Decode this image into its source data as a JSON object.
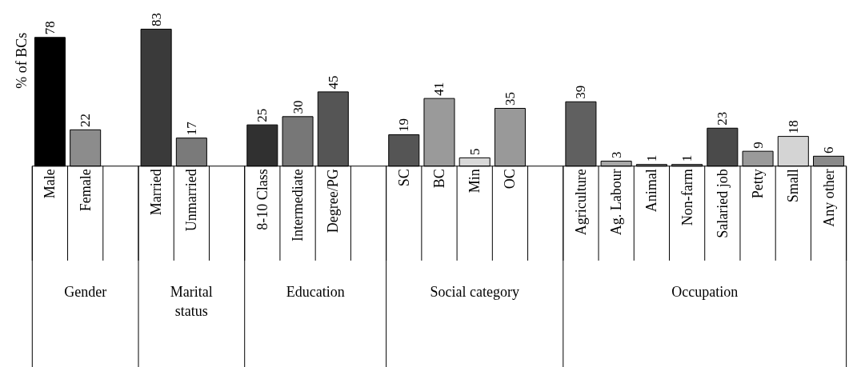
{
  "chart_data": {
    "type": "bar",
    "ylabel": "% of BCs",
    "data_labels": true,
    "categories": [
      "Male",
      "Female",
      null,
      "Married",
      "Unmarried",
      null,
      "8-10 Class",
      "Intermediate",
      "Degree/PG",
      null,
      "SC",
      "BC",
      "Min",
      "OC",
      null,
      "Agriculture",
      "Ag. Labour",
      "Animal",
      "Non-farm",
      "Salaried job",
      "Petty",
      "Small",
      "Any other"
    ],
    "values": [
      78,
      22,
      null,
      83,
      17,
      null,
      25,
      30,
      45,
      null,
      19,
      41,
      5,
      35,
      null,
      39,
      3,
      1,
      1,
      23,
      9,
      18,
      6
    ],
    "colors": [
      "#000000",
      "#8c8c8c",
      null,
      "#3a3a3a",
      "#7a7a7a",
      null,
      "#303030",
      "#777777",
      "#555555",
      null,
      "#555555",
      "#9a9a9a",
      "#d8d8d8",
      "#999999",
      null,
      "#606060",
      "#a8a8a8",
      "#808080",
      "#808080",
      "#4a4a4a",
      "#9a9a9a",
      "#d4d4d4",
      "#8a8a8a"
    ],
    "annotations": [
      "Gender",
      "Marital status",
      "Education",
      "Social category",
      "Occupation"
    ],
    "grid": false
  }
}
